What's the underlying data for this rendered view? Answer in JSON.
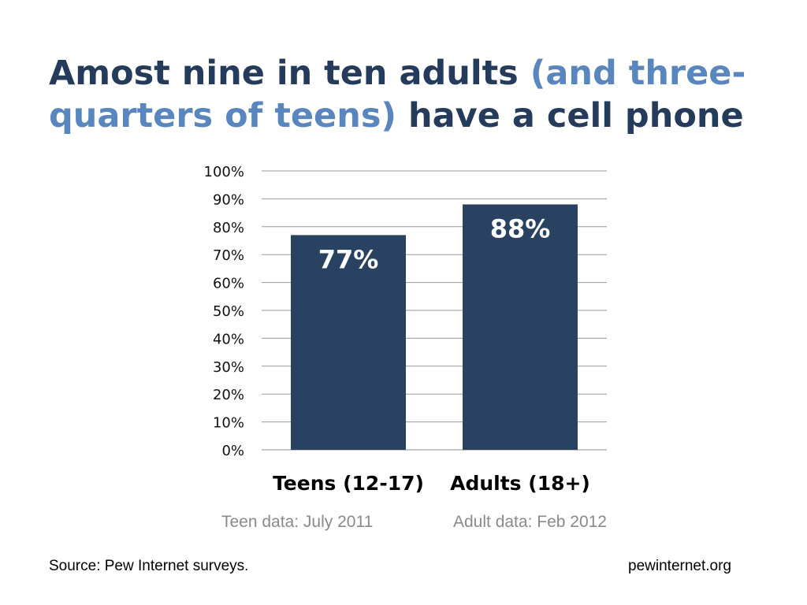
{
  "title": {
    "part1": "Amost nine in ten adults ",
    "accent": "(and three-quarters of teens)",
    "part2": " have a cell phone"
  },
  "colors": {
    "title": "#243b5c",
    "accent": "#5a86bf",
    "bar": "#2a4262",
    "note": "#8a8a8a"
  },
  "chart_data": {
    "type": "bar",
    "categories": [
      "Teens (12-17)",
      "Adults (18+)"
    ],
    "values": [
      77,
      88
    ],
    "data_labels": [
      "77%",
      "88%"
    ],
    "ylim": [
      0,
      100
    ],
    "yticks": [
      "0%",
      "10%",
      "20%",
      "30%",
      "40%",
      "50%",
      "60%",
      "70%",
      "80%",
      "90%",
      "100%"
    ],
    "grid": true,
    "legend": "none"
  },
  "notes": {
    "teen": "Teen data: July 2011",
    "adult": "Adult data: Feb 2012"
  },
  "footer": {
    "source": "Source: Pew Internet surveys.",
    "site": "pewinternet.org"
  }
}
